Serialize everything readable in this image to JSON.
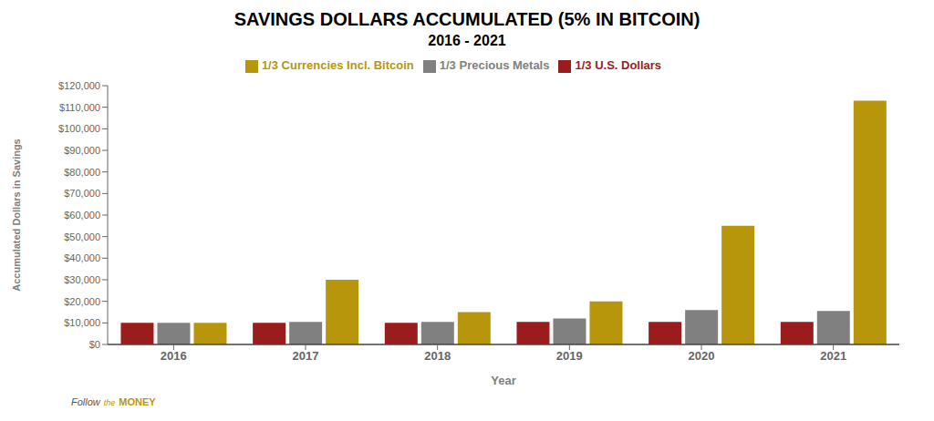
{
  "chart_data": {
    "type": "bar",
    "title": "SAVINGS DOLLARS ACCUMULATED (5% IN BITCOIN)",
    "subtitle": "2016 - 2021",
    "x_label": "Year",
    "y_label": "Accumulated Dollars in Savings",
    "categories": [
      "2016",
      "2017",
      "2018",
      "2019",
      "2020",
      "2021"
    ],
    "series": [
      {
        "name": "1/3 U.S. Dollars",
        "color": "#9B1C1C",
        "values": [
          10000,
          10000,
          10000,
          10500,
          10500,
          10500
        ]
      },
      {
        "name": "1/3 Precious Metals",
        "color": "#808080",
        "values": [
          10000,
          10500,
          10500,
          12000,
          16000,
          15500
        ]
      },
      {
        "name": "1/3 Currencies Incl. Bitcoin",
        "color": "#B8960C",
        "values": [
          10000,
          30000,
          15000,
          20000,
          55000,
          113000
        ]
      }
    ],
    "ylim": [
      0,
      120000
    ],
    "yticks": [
      {
        "value": 0,
        "label": "$0"
      },
      {
        "value": 10000,
        "label": "$10,000"
      },
      {
        "value": 20000,
        "label": "$20,000"
      },
      {
        "value": 30000,
        "label": "$30,000"
      },
      {
        "value": 40000,
        "label": "$40,000"
      },
      {
        "value": 50000,
        "label": "$50,000"
      },
      {
        "value": 60000,
        "label": "$60,000"
      },
      {
        "value": 70000,
        "label": "$70,000"
      },
      {
        "value": 80000,
        "label": "$80,000"
      },
      {
        "value": 90000,
        "label": "$90,000"
      },
      {
        "value": 100000,
        "label": "$100,000"
      },
      {
        "value": 110000,
        "label": "$110,000"
      },
      {
        "value": 120000,
        "label": "$120,000"
      }
    ],
    "grid": false,
    "legend": "top",
    "annotations": [
      "Follow",
      "the",
      "MONEY"
    ]
  }
}
